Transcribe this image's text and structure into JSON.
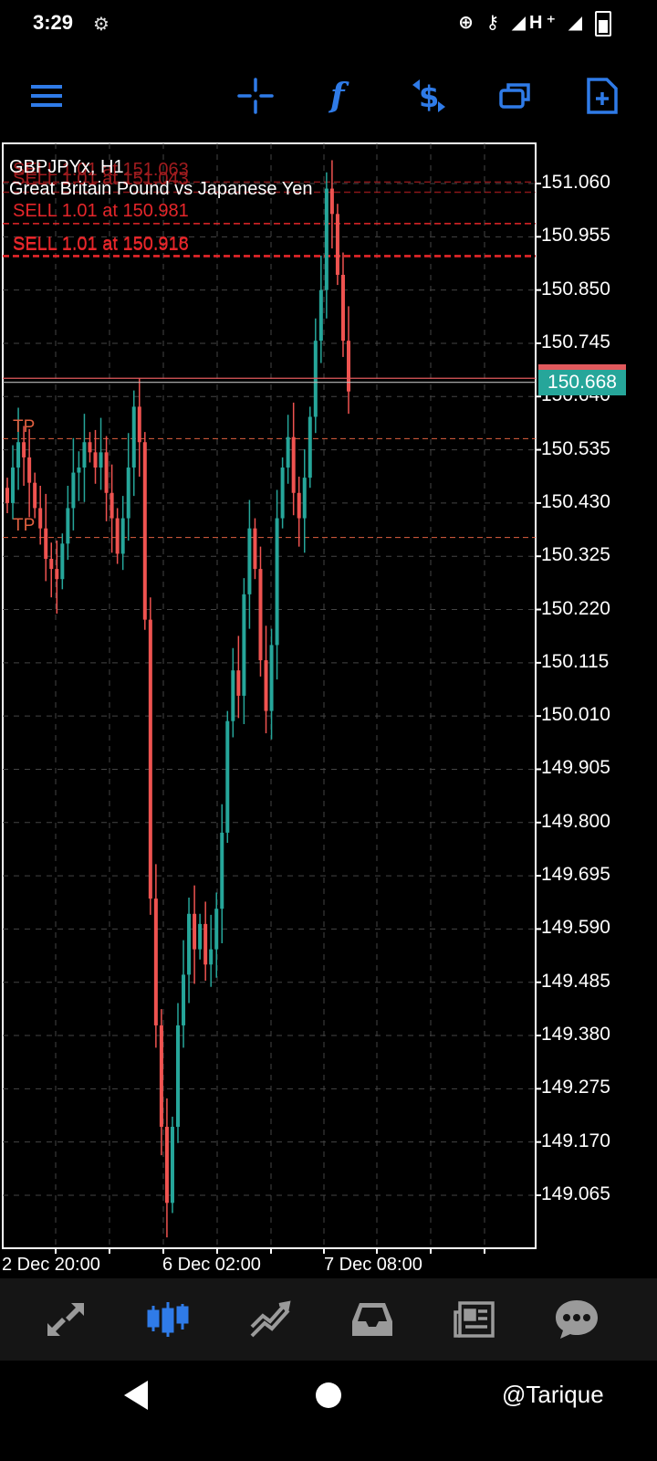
{
  "status_bar": {
    "time": "3:29",
    "icons": "⊕ ⚷ ◢H⁺ ◢"
  },
  "toolbar": {
    "icons": [
      "menu-icon",
      "crosshair-icon",
      "indicators-icon",
      "trade-icon",
      "objects-icon",
      "new-order-icon"
    ]
  },
  "chart": {
    "symbol": "GBPJPYx, H1",
    "description": "Great Britain Pound vs Japanese Yen",
    "orders": [
      {
        "text": "SELL 1.01 at 151.063",
        "price": 151.063
      },
      {
        "text": "SELL 1.01 at 151.043",
        "price": 151.043
      },
      {
        "text": "SELL 1.01 at 150.981",
        "price": 150.981
      },
      {
        "text": "SELL 1.01 at 150.918",
        "price": 150.918
      },
      {
        "text": "SELL 1.01 at 150.916",
        "price": 150.916
      }
    ],
    "tp_levels": [
      {
        "text": "TP",
        "price": 150.557
      },
      {
        "text": "TP",
        "price": 150.362
      }
    ],
    "bid": "150.668",
    "bid_price": 150.668,
    "ask_price": 150.676,
    "price_axis": [
      "151.060",
      "150.955",
      "150.850",
      "150.745",
      "150.640",
      "150.535",
      "150.430",
      "150.325",
      "150.220",
      "150.115",
      "150.010",
      "149.905",
      "149.800",
      "149.695",
      "149.590",
      "149.485",
      "149.380",
      "149.275",
      "149.170",
      "149.065"
    ],
    "time_axis": [
      "2 Dec 20:00",
      "6 Dec 02:00",
      "7 Dec 08:00"
    ],
    "colors": {
      "bull": "#26a69a",
      "bear": "#ef5350",
      "order": "#e5262a",
      "tp": "#e06040",
      "grid": "#444444"
    }
  },
  "chart_data": {
    "type": "candlestick",
    "title": "GBPJPYx, H1",
    "subtitle": "Great Britain Pound vs Japanese Yen",
    "x": [
      "2 Dec 20:00",
      "6 Dec 02:00",
      "7 Dec 08:00"
    ],
    "ylim": [
      149.0,
      151.15
    ],
    "close_series": [
      150.43,
      150.5,
      150.55,
      150.52,
      150.47,
      150.42,
      150.38,
      150.32,
      150.3,
      150.28,
      150.35,
      150.42,
      150.49,
      150.5,
      150.55,
      150.53,
      150.5,
      150.53,
      150.45,
      150.4,
      150.33,
      150.4,
      150.5,
      150.62,
      150.55,
      150.2,
      149.65,
      149.4,
      149.2,
      149.05,
      149.2,
      149.4,
      149.5,
      149.62,
      149.55,
      149.6,
      149.52,
      149.55,
      149.63,
      149.78,
      150.0,
      150.1,
      150.05,
      150.25,
      150.38,
      150.3,
      150.12,
      150.02,
      150.15,
      150.4,
      150.5,
      150.56,
      150.45,
      150.4,
      150.48,
      150.6,
      150.75,
      150.85,
      151.05,
      151.0,
      150.88,
      150.75,
      150.65
    ],
    "grid": true
  },
  "bottom_nav": {
    "icons": [
      "quotes-icon",
      "chart-icon",
      "trade-icon",
      "history-icon",
      "news-icon",
      "messages-icon"
    ],
    "active": 1
  },
  "watermark": "@Tarique"
}
